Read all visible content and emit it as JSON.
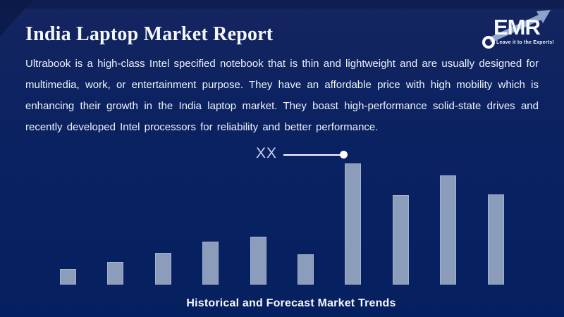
{
  "page": {
    "background_color": "#0b2261",
    "text_color": "#f3f6fc"
  },
  "header": {
    "title": "India Laptop Market Report",
    "logo": {
      "text": "EMR",
      "tagline": "Leave it to the Experts!",
      "arrow_color": "#8ea3cb"
    }
  },
  "description": {
    "text": "Ultrabook is a high-class Intel specified notebook that is thin and lightweight and are usually designed for multimedia, work, or entertainment purpose. They have an affordable price with high mobility which is enhancing their growth in the India laptop market. They boast high-performance solid-state drives and recently developed Intel processors for reliability and better performance."
  },
  "chart_data": {
    "type": "bar",
    "title": "Historical and Forecast Market Trends",
    "categories": [
      "",
      "",
      "",
      "",
      "",
      "",
      "",
      "",
      "",
      ""
    ],
    "values": [
      22,
      32,
      45,
      61,
      68,
      43,
      172,
      127,
      155,
      128
    ],
    "value_note": "bar heights in screen pixels; numeric values masked on chart",
    "ylim": [
      0,
      194
    ],
    "axes_visible": false,
    "grid": false,
    "legend": "none",
    "bar_color": "#8c9cbb",
    "annotation": {
      "text": "XX",
      "points_to_bar_index": 6,
      "marker": "white dot with leader line above tallest bar"
    }
  }
}
